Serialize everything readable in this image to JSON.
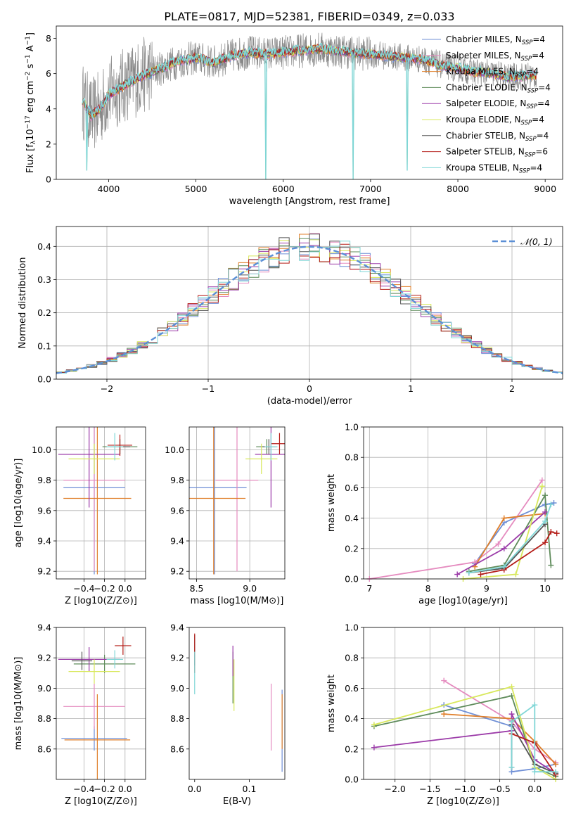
{
  "title": "PLATE=0817, MJD=52381, FIBERID=0349, z=0.033",
  "legend_names": [
    "Chabrier MILES, N_SSP=4",
    "Salpeter MILES, N_SSP=4",
    "Kroupa MILES, N_SSP=4",
    "Chabrier ELODIE, N_SSP=4",
    "Salpeter ELODIE, N_SSP=4",
    "Kroupa ELODIE, N_SSP=4",
    "Chabrier STELIB, N_SSP=4",
    "Salpeter STELIB, N_SSP=6",
    "Kroupa STELIB, N_SSP=4"
  ],
  "colors": [
    "#6f8fd6",
    "#e58bbf",
    "#e07f2a",
    "#5e8b5a",
    "#9b3aa8",
    "#d8e85c",
    "#555555",
    "#b51d18",
    "#7fd6d6"
  ],
  "chart_data": [
    {
      "id": "spectrum",
      "type": "line",
      "xlabel": "wavelength [Angstrom, rest frame]",
      "ylabel": "Flux [f_λ 10^-17 erg cm^-2 s^-1 A^-1]",
      "xlim": [
        3400,
        9200
      ],
      "ylim": [
        0,
        8.7
      ],
      "xticks": [
        4000,
        5000,
        6000,
        7000,
        8000,
        9000
      ],
      "yticks": [
        0,
        2,
        4,
        6,
        8
      ],
      "grid": false,
      "legend_position": "top-right",
      "x": [
        3700,
        3800,
        3900,
        4000,
        4200,
        4400,
        4600,
        4800,
        5000,
        5200,
        5400,
        5600,
        5800,
        6000,
        6200,
        6400,
        6600,
        6800,
        7000,
        7200,
        7400,
        7600,
        7800,
        8000,
        8200,
        8400,
        8600,
        8800
      ],
      "model_values": [
        4.5,
        3.6,
        4.0,
        4.8,
        5.4,
        5.9,
        6.3,
        6.7,
        6.9,
        6.6,
        7.0,
        7.2,
        7.1,
        7.2,
        7.3,
        7.4,
        7.3,
        7.2,
        7.1,
        7.0,
        6.9,
        6.8,
        6.5,
        6.3,
        6.1,
        6.0,
        5.8,
        5.9
      ],
      "dips": [
        {
          "x": 3750,
          "y": 0.5
        },
        {
          "x": 5800,
          "y": 0.0
        },
        {
          "x": 6800,
          "y": 0.0
        },
        {
          "x": 7420,
          "y": 0.5
        }
      ]
    },
    {
      "id": "residual-histogram",
      "type": "histogram",
      "xlabel": "(data-model)/error",
      "ylabel": "Normed distribution",
      "xlim": [
        -2.5,
        2.5
      ],
      "ylim": [
        0,
        0.46
      ],
      "xticks": [
        -2,
        -1,
        0,
        1,
        2
      ],
      "yticks": [
        0.0,
        0.1,
        0.2,
        0.3,
        0.4
      ],
      "grid": true,
      "bin_width": 0.1,
      "reference_curve": {
        "name": "𝒩(0, 1)",
        "mean": 0,
        "sigma": 1
      },
      "legend_position": "top-right"
    },
    {
      "id": "age-vs-Z",
      "type": "scatter",
      "xlabel": "Z [log10(Z/Z⊙)]",
      "ylabel": "age  [log10(age/yr)]",
      "xlim": [
        -0.67,
        0.2
      ],
      "ylim": [
        9.15,
        10.15
      ],
      "xticks": [
        -0.4,
        -0.2,
        0.0
      ],
      "yticks": [
        9.2,
        9.4,
        9.6,
        9.8,
        10.0
      ],
      "grid": true,
      "points": [
        {
          "series": 0,
          "x": -0.3,
          "y": 9.75,
          "xerr": 0.3,
          "yerr": 0.57
        },
        {
          "series": 1,
          "x": -0.3,
          "y": 9.8,
          "xerr": 0.3,
          "yerr": 0.6
        },
        {
          "series": 2,
          "x": -0.27,
          "y": 9.68,
          "xerr": 0.33,
          "yerr": 0.5
        },
        {
          "series": 3,
          "x": -0.05,
          "y": 10.02,
          "xerr": 0.17,
          "yerr": 0.05
        },
        {
          "series": 4,
          "x": -0.35,
          "y": 9.97,
          "xerr": 0.3,
          "yerr": 0.35
        },
        {
          "series": 5,
          "x": -0.3,
          "y": 9.94,
          "xerr": 0.25,
          "yerr": 0.1
        },
        {
          "series": 6,
          "x": -0.05,
          "y": 10.02,
          "xerr": 0.1,
          "yerr": 0.05
        },
        {
          "series": 7,
          "x": -0.05,
          "y": 10.03,
          "xerr": 0.12,
          "yerr": 0.07
        },
        {
          "series": 8,
          "x": -0.1,
          "y": 10.02,
          "xerr": 0.08,
          "yerr": 0.09
        }
      ]
    },
    {
      "id": "age-vs-mass",
      "type": "scatter",
      "xlabel": "mass [log10(M/M⊙)]",
      "ylabel": "",
      "xlim": [
        8.43,
        9.33
      ],
      "ylim": [
        9.15,
        10.15
      ],
      "xticks": [
        8.5,
        9.0
      ],
      "yticks": [
        9.2,
        9.4,
        9.6,
        9.8,
        10.0
      ],
      "grid": true,
      "points": [
        {
          "series": 0,
          "x": 8.67,
          "y": 9.75,
          "xerr": 0.3,
          "yerr": 0.57
        },
        {
          "series": 1,
          "x": 8.88,
          "y": 9.8,
          "xerr": 0.2,
          "yerr": 0.6
        },
        {
          "series": 2,
          "x": 8.66,
          "y": 9.68,
          "xerr": 0.3,
          "yerr": 0.5
        },
        {
          "series": 3,
          "x": 9.16,
          "y": 10.02,
          "xerr": 0.1,
          "yerr": 0.05
        },
        {
          "series": 4,
          "x": 9.2,
          "y": 9.97,
          "xerr": 0.15,
          "yerr": 0.35
        },
        {
          "series": 5,
          "x": 9.11,
          "y": 9.94,
          "xerr": 0.15,
          "yerr": 0.1
        },
        {
          "series": 6,
          "x": 9.18,
          "y": 10.02,
          "xerr": 0.06,
          "yerr": 0.05
        },
        {
          "series": 7,
          "x": 9.28,
          "y": 10.04,
          "xerr": 0.08,
          "yerr": 0.07
        },
        {
          "series": 8,
          "x": 9.2,
          "y": 10.02,
          "xerr": 0.06,
          "yerr": 0.09
        }
      ]
    },
    {
      "id": "mass-weight-vs-age",
      "type": "line",
      "xlabel": "age  [log10(age/yr)]",
      "ylabel": "mass weight",
      "xlim": [
        6.9,
        10.3
      ],
      "ylim": [
        0,
        1.0
      ],
      "xticks": [
        7,
        8,
        9,
        10
      ],
      "yticks": [
        0.0,
        0.2,
        0.4,
        0.6,
        0.8,
        1.0
      ],
      "grid": true,
      "series": [
        {
          "x": [
            8.8,
            9.3,
            10.0,
            10.15
          ],
          "values": [
            0.1,
            0.37,
            0.49,
            0.5
          ]
        },
        {
          "x": [
            7.0,
            8.8,
            9.2,
            9.95
          ],
          "values": [
            0.0,
            0.11,
            0.23,
            0.65
          ]
        },
        {
          "x": [
            8.8,
            9.3,
            10.0
          ],
          "values": [
            0.08,
            0.4,
            0.43
          ]
        },
        {
          "x": [
            8.7,
            9.3,
            10.0,
            10.1
          ],
          "values": [
            0.05,
            0.09,
            0.55,
            0.09
          ]
        },
        {
          "x": [
            8.5,
            9.3,
            10.0
          ],
          "values": [
            0.03,
            0.2,
            0.44
          ]
        },
        {
          "x": [
            8.6,
            9.5,
            9.95
          ],
          "values": [
            0.0,
            0.03,
            0.61
          ]
        },
        {
          "x": [
            8.7,
            9.3,
            10.0
          ],
          "values": [
            0.04,
            0.07,
            0.36
          ]
        },
        {
          "x": [
            8.9,
            9.3,
            10.0,
            10.1,
            10.2
          ],
          "values": [
            0.03,
            0.06,
            0.24,
            0.31,
            0.3
          ]
        },
        {
          "x": [
            8.7,
            9.3,
            10.0,
            10.1
          ],
          "values": [
            0.04,
            0.08,
            0.38,
            0.49
          ]
        }
      ]
    },
    {
      "id": "mass-vs-Z",
      "type": "scatter",
      "xlabel": "Z [log10(Z/Z⊙)]",
      "ylabel": "mass [log10(M/M⊙)]",
      "xlim": [
        -0.67,
        0.2
      ],
      "ylim": [
        8.4,
        9.4
      ],
      "xticks": [
        -0.4,
        -0.2,
        0.0
      ],
      "yticks": [
        8.6,
        8.8,
        9.0,
        9.2,
        9.4
      ],
      "grid": true,
      "points": [
        {
          "series": 0,
          "x": -0.3,
          "y": 8.67,
          "xerr": 0.32,
          "yerr": 0.08
        },
        {
          "series": 1,
          "x": -0.3,
          "y": 8.88,
          "xerr": 0.3,
          "yerr": 0.15
        },
        {
          "series": 2,
          "x": -0.27,
          "y": 8.66,
          "xerr": 0.32,
          "yerr": 0.3
        },
        {
          "series": 3,
          "x": -0.2,
          "y": 9.16,
          "xerr": 0.3,
          "yerr": 0.06
        },
        {
          "series": 4,
          "x": -0.35,
          "y": 9.19,
          "xerr": 0.3,
          "yerr": 0.08
        },
        {
          "series": 5,
          "x": -0.3,
          "y": 9.11,
          "xerr": 0.25,
          "yerr": 0.08
        },
        {
          "series": 6,
          "x": -0.42,
          "y": 9.18,
          "xerr": 0.1,
          "yerr": 0.06
        },
        {
          "series": 7,
          "x": -0.02,
          "y": 9.28,
          "xerr": 0.08,
          "yerr": 0.06
        },
        {
          "series": 8,
          "x": -0.1,
          "y": 9.19,
          "xerr": 0.08,
          "yerr": 0.06
        }
      ]
    },
    {
      "id": "mass-vs-EBV",
      "type": "scatter",
      "xlabel": "E(B-V)",
      "ylabel": "",
      "xlim": [
        -0.01,
        0.165
      ],
      "ylim": [
        8.4,
        9.4
      ],
      "xticks": [
        0.0,
        0.1
      ],
      "yticks": [
        8.6,
        8.8,
        9.0,
        9.2,
        9.4
      ],
      "grid": false,
      "points": [
        {
          "series": 0,
          "x": 0.16,
          "y": 8.72,
          "xerr": 0,
          "yerr": 0.27
        },
        {
          "series": 1,
          "x": 0.14,
          "y": 8.81,
          "xerr": 0,
          "yerr": 0.22
        },
        {
          "series": 2,
          "x": 0.16,
          "y": 8.78,
          "xerr": 0,
          "yerr": 0.18
        },
        {
          "series": 3,
          "x": 0.07,
          "y": 9.07,
          "xerr": 0,
          "yerr": 0.17
        },
        {
          "series": 4,
          "x": 0.07,
          "y": 9.18,
          "xerr": 0,
          "yerr": 0.1
        },
        {
          "series": 5,
          "x": 0.072,
          "y": 9.02,
          "xerr": 0,
          "yerr": 0.17
        },
        {
          "series": 6,
          "x": 0.0,
          "y": 9.25,
          "xerr": 0,
          "yerr": 0.1
        },
        {
          "series": 7,
          "x": 0.0,
          "y": 9.23,
          "xerr": 0,
          "yerr": 0.13
        },
        {
          "series": 8,
          "x": 0.0,
          "y": 9.1,
          "xerr": 0,
          "yerr": 0.14
        }
      ]
    },
    {
      "id": "mass-weight-vs-Z",
      "type": "line",
      "xlabel": "Z [log10(Z/Z⊙)]",
      "ylabel": "mass weight",
      "xlim": [
        -2.45,
        0.4
      ],
      "ylim": [
        0,
        1.0
      ],
      "xticks": [
        -2.0,
        -1.5,
        -1.0,
        -0.5,
        0.0
      ],
      "yticks": [
        0.0,
        0.2,
        0.4,
        0.6,
        0.8,
        1.0
      ],
      "grid": true,
      "series": [
        {
          "x": [
            -1.3,
            -0.33,
            -0.33,
            0.0,
            0.3
          ],
          "values": [
            0.49,
            0.35,
            0.05,
            0.07,
            0.1
          ]
        },
        {
          "x": [
            -1.3,
            -0.33,
            0.0,
            0.3
          ],
          "values": [
            0.65,
            0.38,
            0.2,
            0.11
          ]
        },
        {
          "x": [
            -1.3,
            -0.33,
            0.0,
            0.3
          ],
          "values": [
            0.43,
            0.4,
            0.25,
            0.1
          ]
        },
        {
          "x": [
            -2.3,
            -0.33,
            0.0,
            0.3
          ],
          "values": [
            0.35,
            0.55,
            0.08,
            0.02
          ]
        },
        {
          "x": [
            -2.3,
            -0.33,
            -0.33,
            0.0,
            0.3
          ],
          "values": [
            0.21,
            0.32,
            0.43,
            0.13,
            0.04
          ]
        },
        {
          "x": [
            -2.3,
            -0.33,
            0.0,
            0.3
          ],
          "values": [
            0.36,
            0.61,
            0.08,
            0.0
          ]
        },
        {
          "x": [
            -0.33,
            -0.33,
            0.0,
            0.3
          ],
          "values": [
            0.08,
            0.36,
            0.1,
            0.04
          ]
        },
        {
          "x": [
            -0.33,
            0.0,
            0.3
          ],
          "values": [
            0.3,
            0.24,
            0.03
          ]
        },
        {
          "x": [
            -0.33,
            -0.33,
            0.0,
            0.0,
            0.3
          ],
          "values": [
            0.08,
            0.38,
            0.49,
            0.05,
            0.05
          ]
        }
      ]
    }
  ]
}
